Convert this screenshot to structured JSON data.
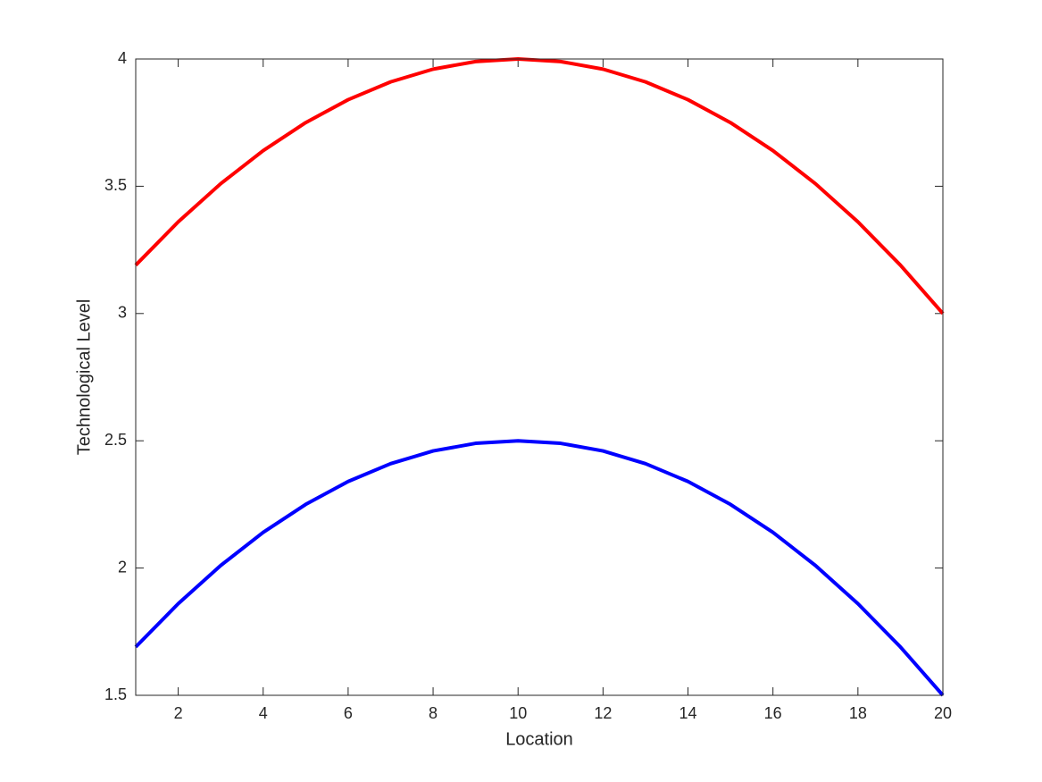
{
  "chart_data": {
    "type": "line",
    "x_label": "Location",
    "y_label": "Technological Level",
    "x": [
      1,
      2,
      3,
      4,
      5,
      6,
      7,
      8,
      9,
      10,
      11,
      12,
      13,
      14,
      15,
      16,
      17,
      18,
      19,
      20
    ],
    "series": [
      {
        "color": "#ff0000",
        "values": [
          3.19,
          3.36,
          3.51,
          3.64,
          3.75,
          3.84,
          3.91,
          3.96,
          3.99,
          4,
          3.99,
          3.96,
          3.91,
          3.84,
          3.75,
          3.64,
          3.51,
          3.36,
          3.19,
          3
        ]
      },
      {
        "color": "#0000ff",
        "values": [
          1.69,
          1.86,
          2.01,
          2.14,
          2.25,
          2.34,
          2.41,
          2.46,
          2.49,
          2.5,
          2.49,
          2.46,
          2.41,
          2.34,
          2.25,
          2.14,
          2.01,
          1.86,
          1.69,
          1.5
        ]
      }
    ],
    "xlim": [
      1,
      20
    ],
    "xticks": [
      2,
      4,
      6,
      8,
      10,
      12,
      14,
      16,
      18,
      20
    ],
    "ylim": [
      1.5,
      4
    ],
    "yticks": [
      1.5,
      2,
      2.5,
      3,
      3.5,
      4
    ],
    "grid": false,
    "box": true
  }
}
